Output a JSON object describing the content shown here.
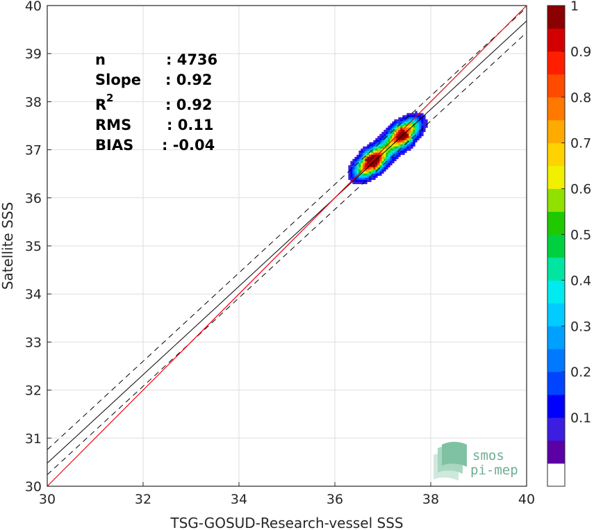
{
  "chart_data": {
    "type": "heatmap",
    "xlabel": "TSG-GOSUD-Research-vessel SSS",
    "ylabel": "Satellite SSS",
    "xlim": [
      30,
      40
    ],
    "ylim": [
      30,
      40
    ],
    "xticks": [
      30,
      32,
      34,
      36,
      38,
      40
    ],
    "yticks": [
      30,
      31,
      32,
      33,
      34,
      35,
      36,
      37,
      38,
      39,
      40
    ],
    "grid": true,
    "stats": {
      "n": {
        "label": "n",
        "value": ": 4736"
      },
      "slope": {
        "label": "Slope",
        "value": ": 0.92"
      },
      "r2": {
        "label": "R",
        "sup": "2",
        "value": ": 0.92"
      },
      "rms": {
        "label": "RMS",
        "value": ": 0.11"
      },
      "bias": {
        "label": "BIAS",
        "value": ": -0.04"
      }
    },
    "identity_line": {
      "color": "#e8000b",
      "points": [
        [
          30,
          30
        ],
        [
          40,
          40
        ]
      ]
    },
    "regression_line": {
      "color": "#000000",
      "points": [
        [
          30,
          30.48
        ],
        [
          40,
          39.68
        ]
      ]
    },
    "regression_bounds": [
      {
        "color": "#000000",
        "dash": true,
        "points": [
          [
            30,
            30.76
          ],
          [
            40,
            39.96
          ]
        ]
      },
      {
        "color": "#000000",
        "dash": true,
        "points": [
          [
            30,
            30.24
          ],
          [
            40,
            39.44
          ]
        ]
      }
    ],
    "density_peaks": [
      {
        "x": 36.72,
        "y": 36.7,
        "value": 1.0
      },
      {
        "x": 37.48,
        "y": 37.37,
        "value": 0.85
      }
    ],
    "colorbar": {
      "min": 0,
      "max": 1,
      "ticks": [
        "0.1",
        "0.2",
        "0.3",
        "0.4",
        "0.5",
        "0.6",
        "0.7",
        "0.8",
        "0.9",
        "1"
      ],
      "colors": [
        "#ffffff",
        "#5a00a5",
        "#3b1ee0",
        "#0000ff",
        "#0044ff",
        "#0078ff",
        "#00a0ff",
        "#00ccff",
        "#00eaf0",
        "#00e6a0",
        "#00d040",
        "#20c800",
        "#90e000",
        "#f0f000",
        "#ffd200",
        "#ffaa00",
        "#ff7800",
        "#ff4b00",
        "#ff1e00",
        "#d40000",
        "#8b0000"
      ]
    }
  },
  "logo": {
    "line1": "smos",
    "line2": "pi-mep"
  }
}
